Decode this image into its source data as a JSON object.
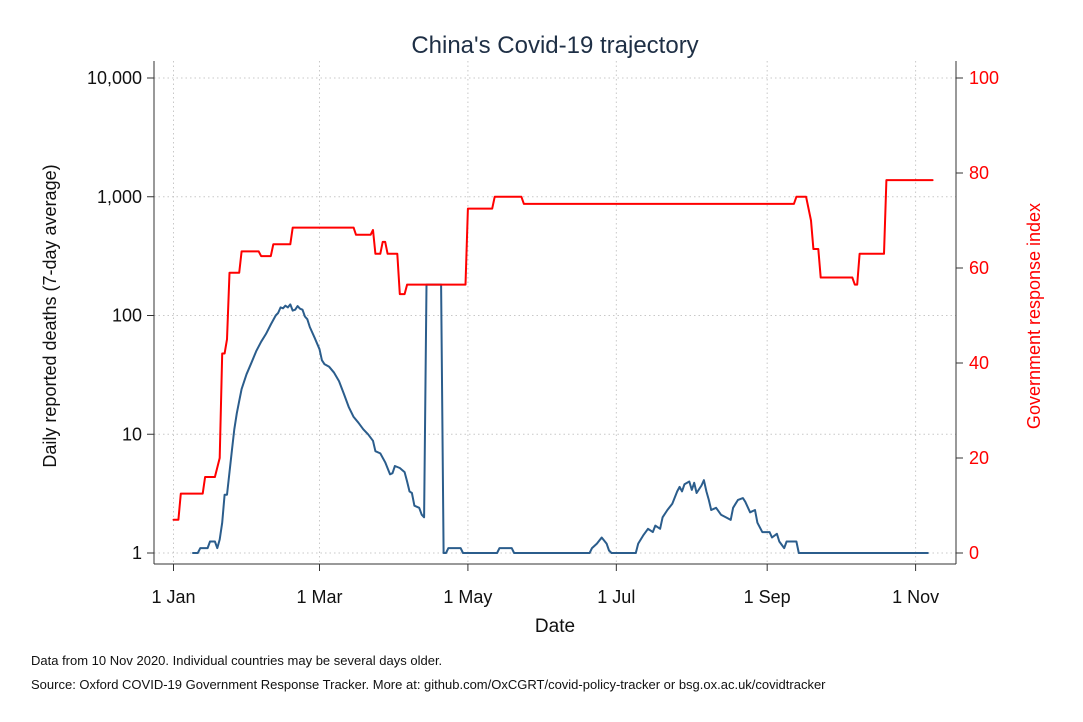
{
  "chart_data": {
    "type": "line",
    "title": "China's Covid-19 trajectory",
    "xlabel": "Date",
    "x_range": [
      "2020-01-01",
      "2020-11-10"
    ],
    "x_ticks": [
      {
        "date": "2020-01-01",
        "label": "1 Jan"
      },
      {
        "date": "2020-03-01",
        "label": "1 Mar"
      },
      {
        "date": "2020-05-01",
        "label": "1 May"
      },
      {
        "date": "2020-07-01",
        "label": "1 Jul"
      },
      {
        "date": "2020-09-01",
        "label": "1 Sep"
      },
      {
        "date": "2020-11-01",
        "label": "1 Nov"
      }
    ],
    "y_left": {
      "label": "Daily reported deaths (7-day average)",
      "scale": "log",
      "range": [
        1,
        10000
      ],
      "ticks": [
        1,
        10,
        100,
        1000,
        10000
      ],
      "tick_labels": [
        "1",
        "10",
        "100",
        "1,000",
        "10,000"
      ],
      "color": "#1f4e79"
    },
    "y_right": {
      "label": "Government response index",
      "scale": "linear",
      "range": [
        0,
        100
      ],
      "ticks": [
        0,
        20,
        40,
        60,
        80,
        100
      ],
      "tick_labels": [
        "0",
        "20",
        "40",
        "60",
        "80",
        "100"
      ],
      "color": "#ff0000"
    },
    "grid": true,
    "legend": "none",
    "series": [
      {
        "axis": "left",
        "color": "#2b5d8c",
        "points": [
          [
            "2020-01-09",
            1
          ],
          [
            "2020-01-11",
            1
          ],
          [
            "2020-01-12",
            1.1
          ],
          [
            "2020-01-15",
            1.1
          ],
          [
            "2020-01-16",
            1.25
          ],
          [
            "2020-01-18",
            1.25
          ],
          [
            "2020-01-19",
            1.1
          ],
          [
            "2020-01-20",
            1.3
          ],
          [
            "2020-01-21",
            1.8
          ],
          [
            "2020-01-22",
            3.1
          ],
          [
            "2020-01-23",
            3.1
          ],
          [
            "2020-01-24",
            4.8
          ],
          [
            "2020-01-25",
            7.3
          ],
          [
            "2020-01-26",
            11
          ],
          [
            "2020-01-27",
            15
          ],
          [
            "2020-01-28",
            19
          ],
          [
            "2020-01-29",
            24
          ],
          [
            "2020-01-31",
            32
          ],
          [
            "2020-02-02",
            40
          ],
          [
            "2020-02-04",
            50
          ],
          [
            "2020-02-06",
            60
          ],
          [
            "2020-02-08",
            70
          ],
          [
            "2020-02-10",
            84
          ],
          [
            "2020-02-12",
            100
          ],
          [
            "2020-02-13",
            105
          ],
          [
            "2020-02-14",
            117
          ],
          [
            "2020-02-15",
            115
          ],
          [
            "2020-02-16",
            121
          ],
          [
            "2020-02-17",
            117
          ],
          [
            "2020-02-18",
            124
          ],
          [
            "2020-02-19",
            110
          ],
          [
            "2020-02-20",
            112
          ],
          [
            "2020-02-21",
            120
          ],
          [
            "2020-02-22",
            114
          ],
          [
            "2020-02-23",
            112
          ],
          [
            "2020-02-24",
            98
          ],
          [
            "2020-02-25",
            93
          ],
          [
            "2020-02-26",
            80
          ],
          [
            "2020-02-28",
            65
          ],
          [
            "2020-03-01",
            52
          ],
          [
            "2020-03-02",
            42
          ],
          [
            "2020-03-03",
            39
          ],
          [
            "2020-03-05",
            37
          ],
          [
            "2020-03-07",
            33
          ],
          [
            "2020-03-09",
            28
          ],
          [
            "2020-03-11",
            22
          ],
          [
            "2020-03-13",
            17
          ],
          [
            "2020-03-15",
            14
          ],
          [
            "2020-03-17",
            12.5
          ],
          [
            "2020-03-19",
            11
          ],
          [
            "2020-03-21",
            10
          ],
          [
            "2020-03-23",
            8.8
          ],
          [
            "2020-03-24",
            7.2
          ],
          [
            "2020-03-26",
            6.9
          ],
          [
            "2020-03-28",
            5.8
          ],
          [
            "2020-03-30",
            4.6
          ],
          [
            "2020-03-31",
            4.7
          ],
          [
            "2020-04-01",
            5.4
          ],
          [
            "2020-04-03",
            5.2
          ],
          [
            "2020-04-05",
            4.8
          ],
          [
            "2020-04-06",
            4
          ],
          [
            "2020-04-07",
            3.3
          ],
          [
            "2020-04-08",
            3.2
          ],
          [
            "2020-04-09",
            2.5
          ],
          [
            "2020-04-11",
            2.4
          ],
          [
            "2020-04-12",
            2.1
          ],
          [
            "2020-04-13",
            2
          ],
          [
            "2020-04-14",
            182
          ],
          [
            "2020-04-17",
            182
          ],
          [
            "2020-04-18",
            182
          ],
          [
            "2020-04-19",
            182
          ],
          [
            "2020-04-20",
            182
          ],
          [
            "2020-04-21",
            1
          ],
          [
            "2020-04-22",
            1
          ],
          [
            "2020-04-23",
            1.1
          ],
          [
            "2020-04-28",
            1.1
          ],
          [
            "2020-04-29",
            1
          ],
          [
            "2020-05-13",
            1
          ],
          [
            "2020-05-14",
            1.1
          ],
          [
            "2020-05-19",
            1.1
          ],
          [
            "2020-05-20",
            1
          ],
          [
            "2020-06-20",
            1
          ],
          [
            "2020-06-21",
            1.1
          ],
          [
            "2020-06-23",
            1.2
          ],
          [
            "2020-06-25",
            1.35
          ],
          [
            "2020-06-27",
            1.2
          ],
          [
            "2020-06-28",
            1.05
          ],
          [
            "2020-06-29",
            1
          ],
          [
            "2020-07-09",
            1
          ],
          [
            "2020-07-10",
            1.2
          ],
          [
            "2020-07-12",
            1.4
          ],
          [
            "2020-07-14",
            1.6
          ],
          [
            "2020-07-16",
            1.5
          ],
          [
            "2020-07-17",
            1.7
          ],
          [
            "2020-07-19",
            1.6
          ],
          [
            "2020-07-20",
            2
          ],
          [
            "2020-07-22",
            2.3
          ],
          [
            "2020-07-24",
            2.6
          ],
          [
            "2020-07-26",
            3.3
          ],
          [
            "2020-07-27",
            3.6
          ],
          [
            "2020-07-28",
            3.3
          ],
          [
            "2020-07-29",
            3.8
          ],
          [
            "2020-07-31",
            4
          ],
          [
            "2020-08-01",
            3.4
          ],
          [
            "2020-08-02",
            3.9
          ],
          [
            "2020-08-03",
            3.2
          ],
          [
            "2020-08-05",
            3.7
          ],
          [
            "2020-08-06",
            4.1
          ],
          [
            "2020-08-07",
            3.3
          ],
          [
            "2020-08-08",
            2.8
          ],
          [
            "2020-08-09",
            2.3
          ],
          [
            "2020-08-11",
            2.4
          ],
          [
            "2020-08-13",
            2.1
          ],
          [
            "2020-08-15",
            2
          ],
          [
            "2020-08-17",
            1.9
          ],
          [
            "2020-08-18",
            2.4
          ],
          [
            "2020-08-19",
            2.6
          ],
          [
            "2020-08-20",
            2.8
          ],
          [
            "2020-08-22",
            2.9
          ],
          [
            "2020-08-23",
            2.7
          ],
          [
            "2020-08-25",
            2.2
          ],
          [
            "2020-08-27",
            2.3
          ],
          [
            "2020-08-28",
            1.8
          ],
          [
            "2020-08-30",
            1.5
          ],
          [
            "2020-09-02",
            1.5
          ],
          [
            "2020-09-03",
            1.35
          ],
          [
            "2020-09-05",
            1.45
          ],
          [
            "2020-09-06",
            1.25
          ],
          [
            "2020-09-08",
            1.1
          ],
          [
            "2020-09-09",
            1.25
          ],
          [
            "2020-09-13",
            1.25
          ],
          [
            "2020-09-14",
            1
          ],
          [
            "2020-11-06",
            1
          ]
        ]
      },
      {
        "axis": "right",
        "color": "#ff0000",
        "points": [
          [
            "2020-01-01",
            7
          ],
          [
            "2020-01-03",
            7
          ],
          [
            "2020-01-04",
            12.5
          ],
          [
            "2020-01-13",
            12.5
          ],
          [
            "2020-01-14",
            16
          ],
          [
            "2020-01-18",
            16
          ],
          [
            "2020-01-20",
            20
          ],
          [
            "2020-01-21",
            42
          ],
          [
            "2020-01-22",
            42
          ],
          [
            "2020-01-23",
            45
          ],
          [
            "2020-01-24",
            59
          ],
          [
            "2020-01-28",
            59
          ],
          [
            "2020-01-29",
            63.5
          ],
          [
            "2020-02-05",
            63.5
          ],
          [
            "2020-02-06",
            62.5
          ],
          [
            "2020-02-10",
            62.5
          ],
          [
            "2020-02-11",
            65
          ],
          [
            "2020-02-18",
            65
          ],
          [
            "2020-02-19",
            68.5
          ],
          [
            "2020-03-15",
            68.5
          ],
          [
            "2020-03-16",
            67
          ],
          [
            "2020-03-22",
            67
          ],
          [
            "2020-03-23",
            68
          ],
          [
            "2020-03-24",
            63
          ],
          [
            "2020-03-26",
            63
          ],
          [
            "2020-03-27",
            65.5
          ],
          [
            "2020-03-28",
            65.5
          ],
          [
            "2020-03-29",
            63
          ],
          [
            "2020-04-02",
            63
          ],
          [
            "2020-04-03",
            54.5
          ],
          [
            "2020-04-05",
            54.5
          ],
          [
            "2020-04-06",
            56.5
          ],
          [
            "2020-04-30",
            56.5
          ],
          [
            "2020-05-01",
            72.5
          ],
          [
            "2020-05-11",
            72.5
          ],
          [
            "2020-05-12",
            75
          ],
          [
            "2020-05-23",
            75
          ],
          [
            "2020-05-24",
            73.5
          ],
          [
            "2020-09-12",
            73.5
          ],
          [
            "2020-09-13",
            75
          ],
          [
            "2020-09-17",
            75
          ],
          [
            "2020-09-19",
            70
          ],
          [
            "2020-09-20",
            64
          ],
          [
            "2020-09-22",
            64
          ],
          [
            "2020-09-23",
            58
          ],
          [
            "2020-10-06",
            58
          ],
          [
            "2020-10-07",
            56.5
          ],
          [
            "2020-10-08",
            56.5
          ],
          [
            "2020-10-09",
            63
          ],
          [
            "2020-10-19",
            63
          ],
          [
            "2020-10-20",
            78.5
          ],
          [
            "2020-11-08",
            78.5
          ]
        ]
      }
    ]
  },
  "notes": [
    "Data from 10 Nov 2020. Individual countries may be several days older.",
    "Source: Oxford COVID-19 Government Response Tracker. More at: github.com/OxCGRT/covid-policy-tracker or bsg.ox.ac.uk/covidtracker"
  ]
}
